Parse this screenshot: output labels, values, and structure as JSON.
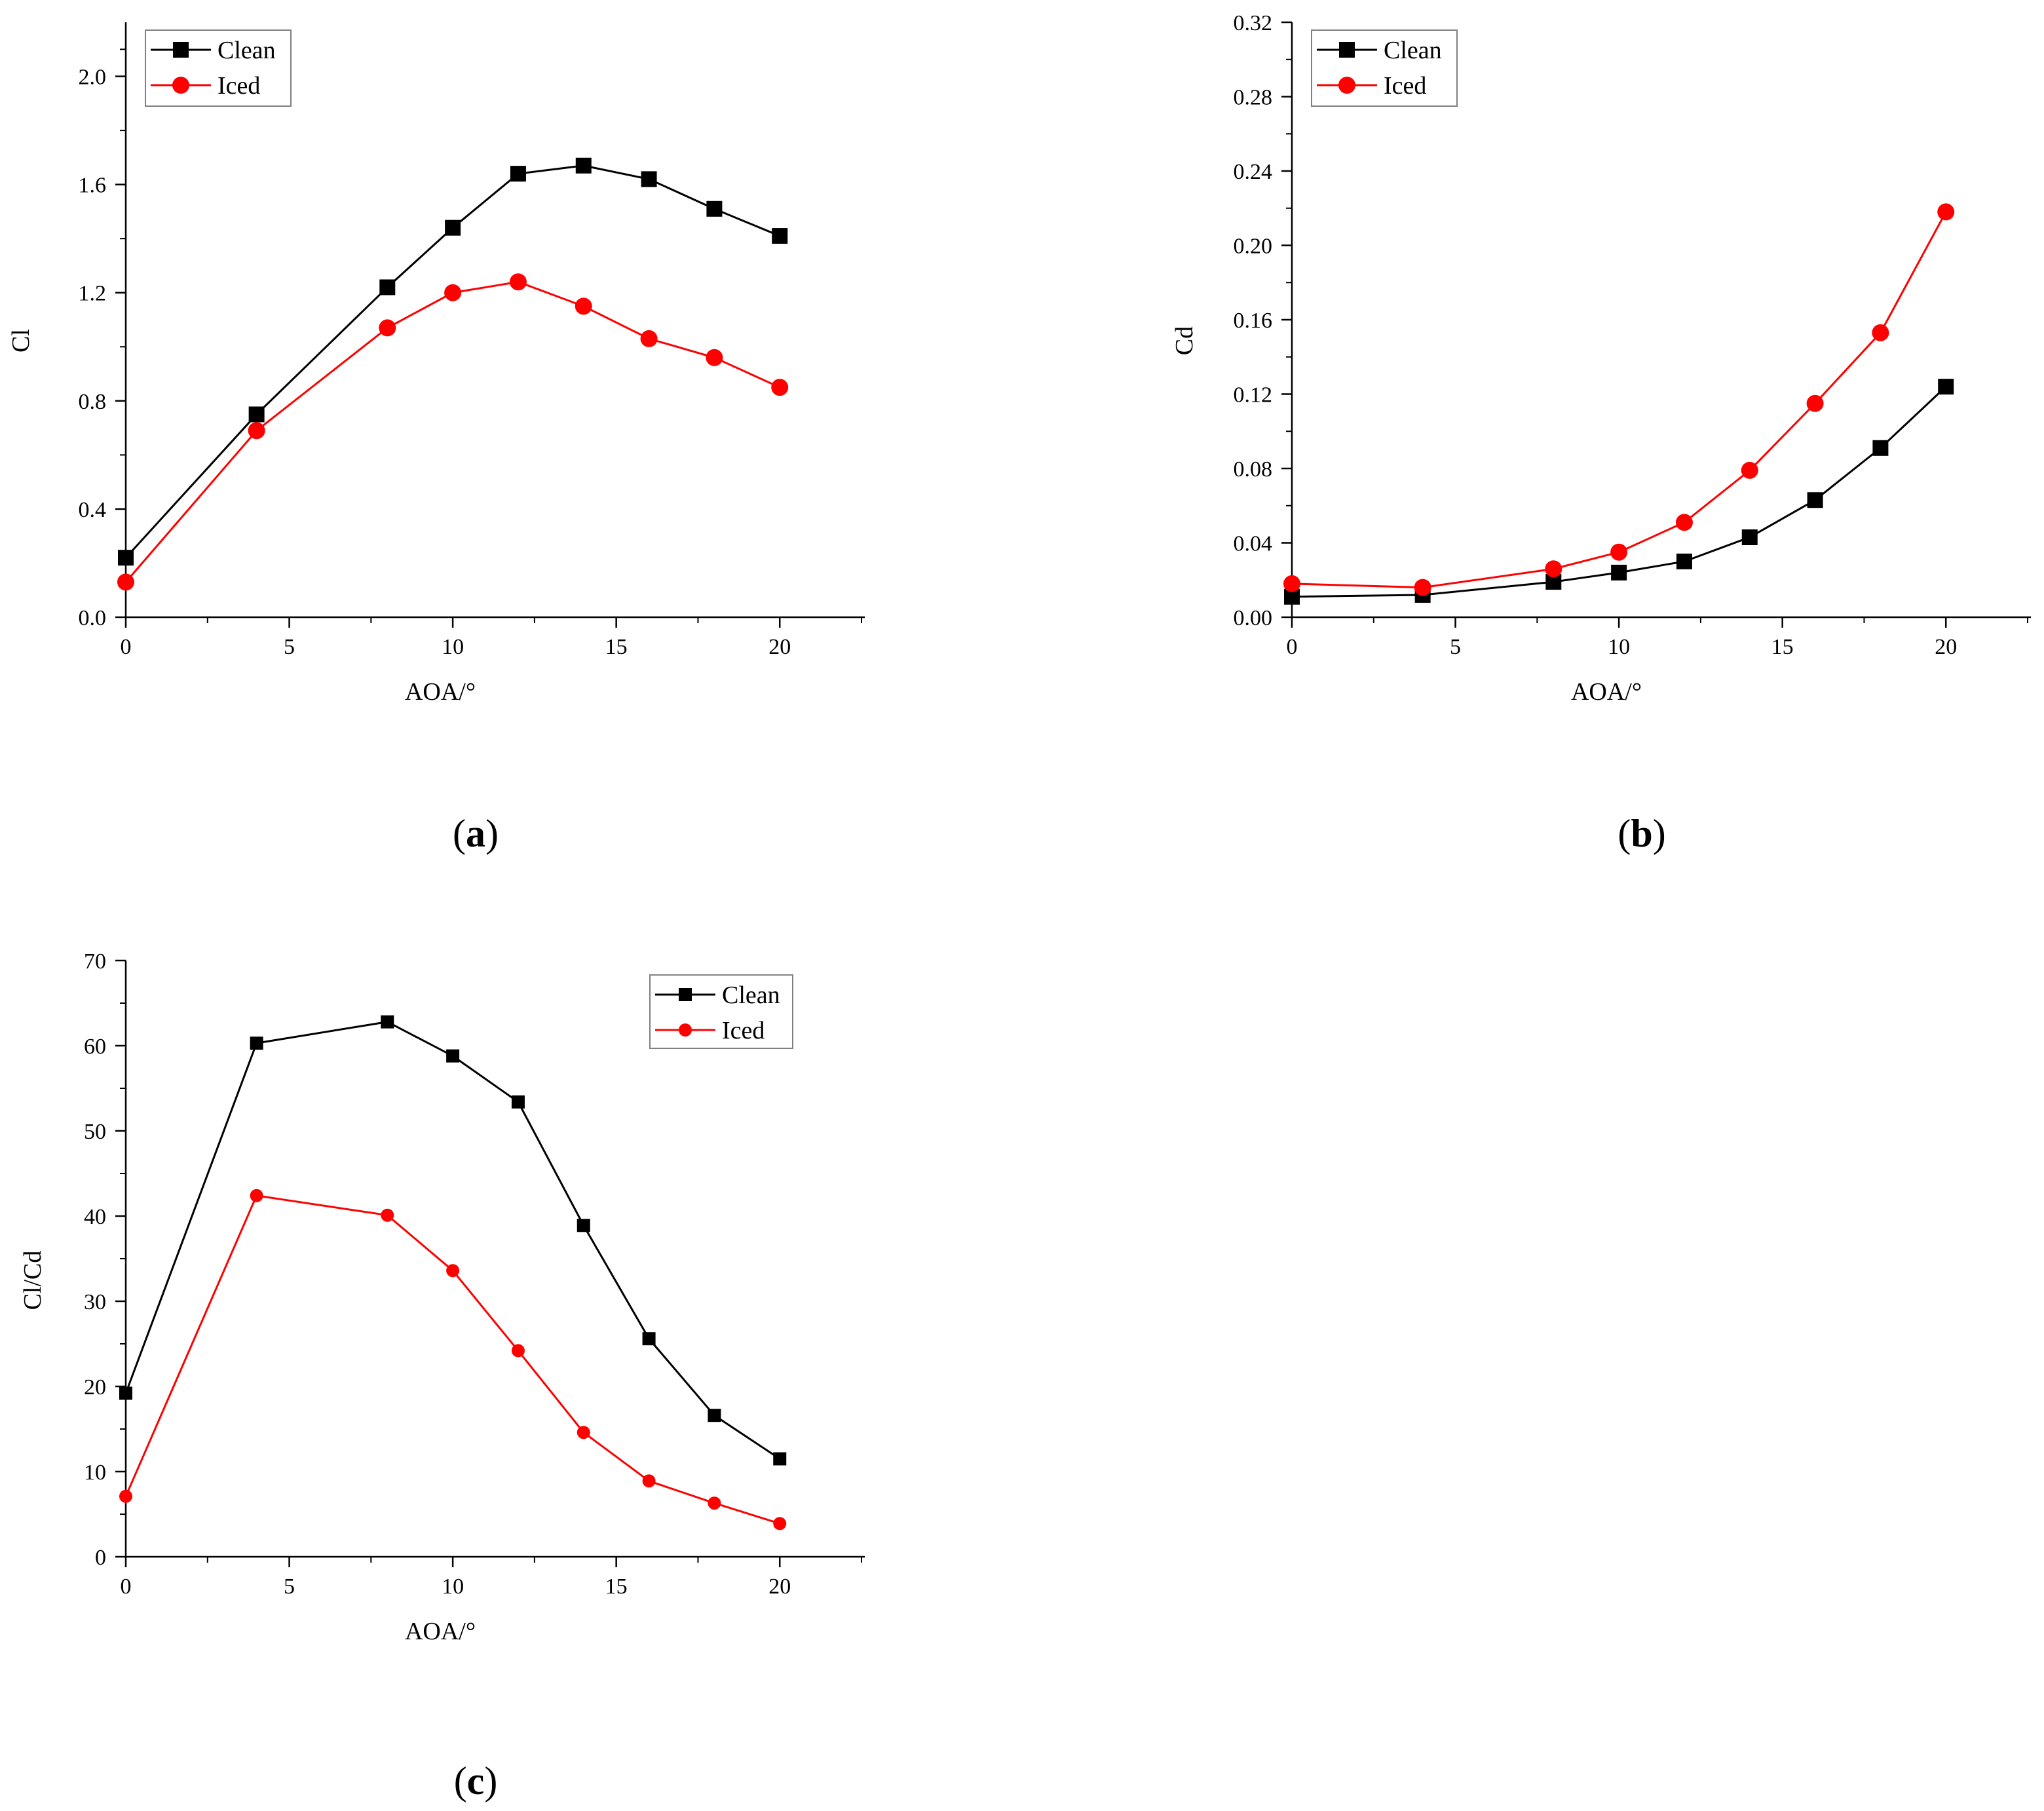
{
  "colors": {
    "clean": "#000000",
    "iced": "#ff0000",
    "axis": "#000000",
    "legend_border": "#808080"
  },
  "chart_data": [
    {
      "id": "a",
      "type": "line",
      "panel_label": {
        "open": "(",
        "letter": "a",
        "close": ")"
      },
      "xlabel": "AOA/°",
      "ylabel": "Cl",
      "xlim": [
        0,
        22.6
      ],
      "ylim": [
        0,
        2.2
      ],
      "xticks": [
        0,
        5,
        10,
        15,
        20
      ],
      "yticks": [
        0.0,
        0.4,
        0.8,
        1.2,
        1.6,
        2.0
      ],
      "ytick_labels": [
        "0.0",
        "0.4",
        "0.8",
        "1.2",
        "1.6",
        "2.0"
      ],
      "legend_position": "top-left",
      "series": [
        {
          "name": "Clean",
          "marker": "square",
          "x": [
            0,
            4,
            8,
            10,
            12,
            14,
            16,
            18,
            20
          ],
          "values": [
            0.22,
            0.75,
            1.22,
            1.44,
            1.64,
            1.67,
            1.62,
            1.51,
            1.41
          ]
        },
        {
          "name": "Iced",
          "marker": "circle",
          "x": [
            0,
            4,
            8,
            10,
            12,
            14,
            16,
            18,
            20
          ],
          "values": [
            0.13,
            0.69,
            1.07,
            1.2,
            1.24,
            1.15,
            1.03,
            0.96,
            0.85
          ]
        }
      ]
    },
    {
      "id": "b",
      "type": "line",
      "panel_label": {
        "open": "(",
        "letter": "b",
        "close": ")"
      },
      "xlabel": "AOA/°",
      "ylabel": "Cd",
      "xlim": [
        0,
        22.6
      ],
      "ylim": [
        0,
        0.32
      ],
      "xticks": [
        0,
        5,
        10,
        15,
        20
      ],
      "yticks": [
        0.0,
        0.04,
        0.08,
        0.12,
        0.16,
        0.2,
        0.24,
        0.28,
        0.32
      ],
      "ytick_labels": [
        "0.00",
        "0.04",
        "0.08",
        "0.12",
        "0.16",
        "0.20",
        "0.24",
        "0.28",
        "0.32"
      ],
      "legend_position": "top-left",
      "series": [
        {
          "name": "Clean",
          "marker": "square",
          "x": [
            0,
            4,
            8,
            10,
            12,
            14,
            16,
            18,
            20
          ],
          "values": [
            0.011,
            0.012,
            0.019,
            0.024,
            0.03,
            0.043,
            0.063,
            0.091,
            0.124
          ]
        },
        {
          "name": "Iced",
          "marker": "circle",
          "x": [
            0,
            4,
            8,
            10,
            12,
            14,
            16,
            18,
            20
          ],
          "values": [
            0.018,
            0.016,
            0.026,
            0.035,
            0.051,
            0.079,
            0.115,
            0.153,
            0.218
          ]
        }
      ]
    },
    {
      "id": "c",
      "type": "line",
      "panel_label": {
        "open": "(",
        "letter": "c",
        "close": ")"
      },
      "xlabel": "AOA/°",
      "ylabel": "Cl/Cd",
      "xlim": [
        0,
        22.6
      ],
      "ylim": [
        0,
        70
      ],
      "xticks": [
        0,
        5,
        10,
        15,
        20
      ],
      "yticks": [
        0,
        10,
        20,
        30,
        40,
        50,
        60,
        70
      ],
      "ytick_labels": [
        "0",
        "10",
        "20",
        "30",
        "40",
        "50",
        "60",
        "70"
      ],
      "legend_position": "top-right",
      "series": [
        {
          "name": "Clean",
          "marker": "square-small",
          "x": [
            0,
            4,
            8,
            10,
            12,
            14,
            16,
            18,
            20
          ],
          "values": [
            19.2,
            60.3,
            62.8,
            58.8,
            53.4,
            38.9,
            25.6,
            16.6,
            11.5
          ]
        },
        {
          "name": "Iced",
          "marker": "circle-small",
          "x": [
            0,
            4,
            8,
            10,
            12,
            14,
            16,
            18,
            20
          ],
          "values": [
            7.1,
            42.4,
            40.1,
            33.6,
            24.2,
            14.6,
            8.9,
            6.3,
            3.9
          ]
        }
      ]
    }
  ]
}
